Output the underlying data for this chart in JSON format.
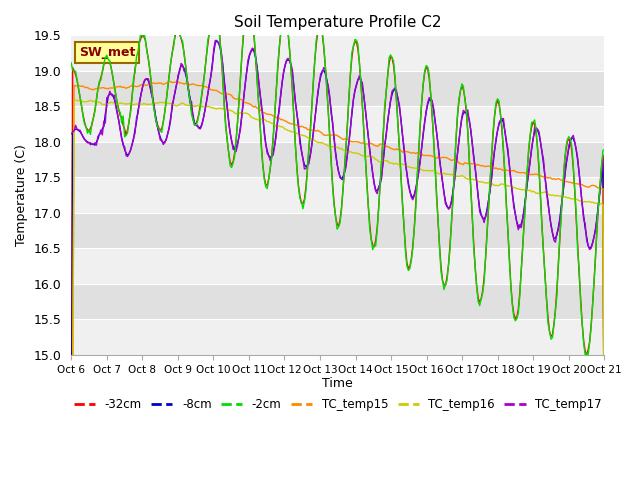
{
  "title": "Soil Temperature Profile C2",
  "xlabel": "Time",
  "ylabel": "Temperature (C)",
  "ylim": [
    15.0,
    19.5
  ],
  "yticks": [
    15.0,
    15.5,
    16.0,
    16.5,
    17.0,
    17.5,
    18.0,
    18.5,
    19.0,
    19.5
  ],
  "xtick_labels": [
    "Oct 6",
    "Oct 7",
    "Oct 8",
    "Oct 9",
    "Oct 10",
    "Oct 11",
    "Oct 12",
    "Oct 13",
    "Oct 14",
    "Oct 15",
    "Oct 16",
    "Oct 17",
    "Oct 18",
    "Oct 19",
    "Oct 20",
    "Oct 21"
  ],
  "colors": {
    "m32cm": "#ff0000",
    "m8cm": "#0000cc",
    "m2cm": "#00dd00",
    "TC_temp15": "#ff8800",
    "TC_temp16": "#cccc00",
    "TC_temp17": "#aa00cc"
  },
  "annotation_text": "SW_met",
  "annotation_bg": "#ffff99",
  "annotation_edge": "#996600",
  "annotation_text_color": "#880000",
  "plot_bg_light": "#f0f0f0",
  "plot_bg_dark": "#e0e0e0",
  "fig_bg": "#ffffff",
  "n_days": 15,
  "seed": 42
}
